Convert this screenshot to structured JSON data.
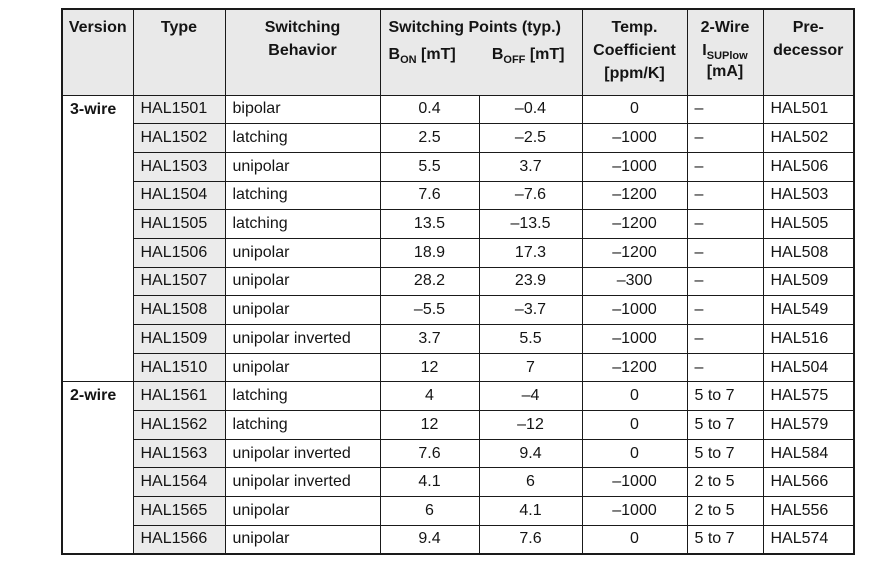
{
  "colors": {
    "border": "#1a1a1a",
    "header_bg": "#e9e9e9",
    "type_column_bg": "#ebebeb",
    "text": "#141414"
  },
  "table": {
    "header": {
      "version": "Version",
      "type": "Type",
      "behavior_line1": "Switching",
      "behavior_line2": "Behavior",
      "switching_points_title": "Switching Points (typ.)",
      "bon": {
        "base": "B",
        "sub": "ON",
        "unit": "[mT]"
      },
      "boff": {
        "base": "B",
        "sub": "OFF",
        "unit": "[mT]"
      },
      "temp_line1": "Temp.",
      "temp_line2": "Coefficient",
      "temp_line3": "[ppm/K]",
      "twowire_line1": "2-Wire",
      "isup": {
        "base": "I",
        "sub": "SUPlow"
      },
      "twowire_unit": "[mA]",
      "predecessor_line1": "Pre-",
      "predecessor_line2": "decessor"
    },
    "sections": [
      {
        "version": "3-wire",
        "rows": [
          {
            "type": "HAL1501",
            "switching_behavior": "bipolar",
            "b_on_mT": "0.4",
            "b_off_mT": "–0.4",
            "temp_coefficient_ppm_K": "0",
            "i_sup_low_mA": "–",
            "predecessor": "HAL501"
          },
          {
            "type": "HAL1502",
            "switching_behavior": "latching",
            "b_on_mT": "2.5",
            "b_off_mT": "–2.5",
            "temp_coefficient_ppm_K": "–1000",
            "i_sup_low_mA": "–",
            "predecessor": "HAL502"
          },
          {
            "type": "HAL1503",
            "switching_behavior": "unipolar",
            "b_on_mT": "5.5",
            "b_off_mT": "3.7",
            "temp_coefficient_ppm_K": "–1000",
            "i_sup_low_mA": "–",
            "predecessor": "HAL506"
          },
          {
            "type": "HAL1504",
            "switching_behavior": "latching",
            "b_on_mT": "7.6",
            "b_off_mT": "–7.6",
            "temp_coefficient_ppm_K": "–1200",
            "i_sup_low_mA": "–",
            "predecessor": "HAL503"
          },
          {
            "type": "HAL1505",
            "switching_behavior": "latching",
            "b_on_mT": "13.5",
            "b_off_mT": "–13.5",
            "temp_coefficient_ppm_K": "–1200",
            "i_sup_low_mA": "–",
            "predecessor": "HAL505"
          },
          {
            "type": "HAL1506",
            "switching_behavior": "unipolar",
            "b_on_mT": "18.9",
            "b_off_mT": "17.3",
            "temp_coefficient_ppm_K": "–1200",
            "i_sup_low_mA": "–",
            "predecessor": "HAL508"
          },
          {
            "type": "HAL1507",
            "switching_behavior": "unipolar",
            "b_on_mT": "28.2",
            "b_off_mT": "23.9",
            "temp_coefficient_ppm_K": "–300",
            "i_sup_low_mA": "–",
            "predecessor": "HAL509"
          },
          {
            "type": "HAL1508",
            "switching_behavior": "unipolar",
            "b_on_mT": "–5.5",
            "b_off_mT": "–3.7",
            "temp_coefficient_ppm_K": "–1000",
            "i_sup_low_mA": "–",
            "predecessor": "HAL549"
          },
          {
            "type": "HAL1509",
            "switching_behavior": "unipolar inverted",
            "b_on_mT": "3.7",
            "b_off_mT": "5.5",
            "temp_coefficient_ppm_K": "–1000",
            "i_sup_low_mA": "–",
            "predecessor": "HAL516"
          },
          {
            "type": "HAL1510",
            "switching_behavior": "unipolar",
            "b_on_mT": "12",
            "b_off_mT": "7",
            "temp_coefficient_ppm_K": "–1200",
            "i_sup_low_mA": "–",
            "predecessor": "HAL504"
          }
        ]
      },
      {
        "version": "2-wire",
        "rows": [
          {
            "type": "HAL1561",
            "switching_behavior": "latching",
            "b_on_mT": "4",
            "b_off_mT": "–4",
            "temp_coefficient_ppm_K": "0",
            "i_sup_low_mA": "5 to 7",
            "predecessor": "HAL575"
          },
          {
            "type": "HAL1562",
            "switching_behavior": "latching",
            "b_on_mT": "12",
            "b_off_mT": "–12",
            "temp_coefficient_ppm_K": "0",
            "i_sup_low_mA": "5 to 7",
            "predecessor": "HAL579"
          },
          {
            "type": "HAL1563",
            "switching_behavior": "unipolar inverted",
            "b_on_mT": "7.6",
            "b_off_mT": "9.4",
            "temp_coefficient_ppm_K": "0",
            "i_sup_low_mA": "5 to 7",
            "predecessor": "HAL584"
          },
          {
            "type": "HAL1564",
            "switching_behavior": "unipolar inverted",
            "b_on_mT": "4.1",
            "b_off_mT": "6",
            "temp_coefficient_ppm_K": "–1000",
            "i_sup_low_mA": "2 to 5",
            "predecessor": "HAL566"
          },
          {
            "type": "HAL1565",
            "switching_behavior": "unipolar",
            "b_on_mT": "6",
            "b_off_mT": "4.1",
            "temp_coefficient_ppm_K": "–1000",
            "i_sup_low_mA": "2 to 5",
            "predecessor": "HAL556"
          },
          {
            "type": "HAL1566",
            "switching_behavior": "unipolar",
            "b_on_mT": "9.4",
            "b_off_mT": "7.6",
            "temp_coefficient_ppm_K": "0",
            "i_sup_low_mA": "5 to 7",
            "predecessor": "HAL574"
          }
        ]
      }
    ]
  }
}
